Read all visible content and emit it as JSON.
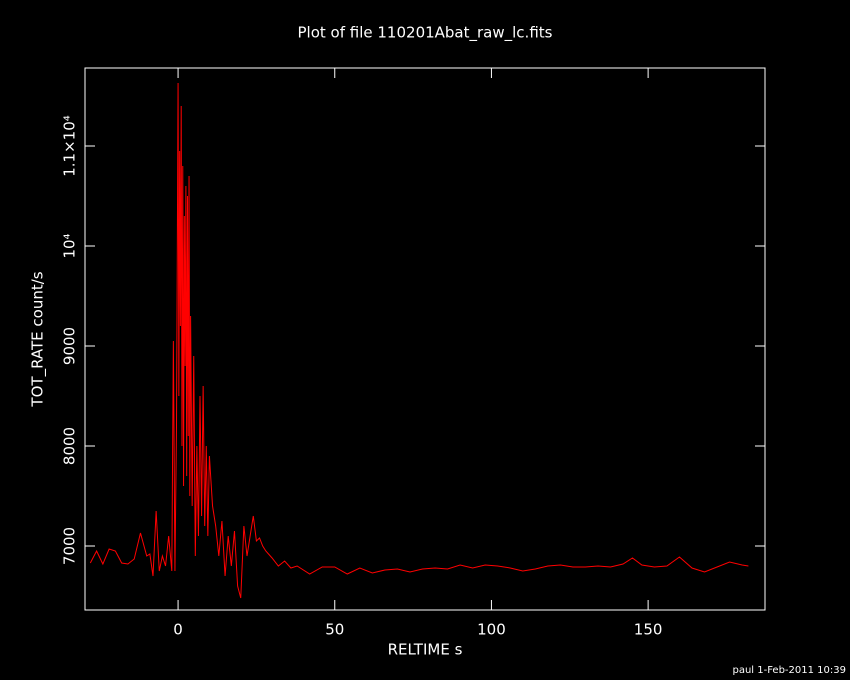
{
  "chart_data": {
    "type": "line",
    "title": "Plot of file 110201Abat_raw_lc.fits",
    "x_label": "RELTIME  s",
    "y_label": "TOT_RATE  count/s",
    "footer": "paul  1-Feb-2011 10:39",
    "color": "#ff0000",
    "xlim": [
      -29.7,
      187.3
    ],
    "ylim": [
      6360,
      11780
    ],
    "xticks": [
      0,
      50,
      100,
      150
    ],
    "yticks": [
      7000,
      8000,
      9000,
      {
        "value": 10000,
        "label": "10⁴"
      },
      {
        "value": 11000,
        "label": "1.1×10⁴"
      }
    ],
    "x": [
      -28,
      -26,
      -24,
      -22,
      -20,
      -18,
      -16,
      -14,
      -12,
      -10,
      -9,
      -8,
      -7,
      -6,
      -5,
      -4,
      -3,
      -2,
      -1.5,
      -1,
      -0.5,
      0,
      0.25,
      0.5,
      0.75,
      1,
      1.25,
      1.5,
      1.75,
      2,
      2.25,
      2.5,
      2.75,
      3,
      3.25,
      3.5,
      3.75,
      4,
      4.5,
      5,
      5.5,
      6,
      6.5,
      7,
      7.5,
      8,
      8.5,
      9,
      9.5,
      10,
      11,
      12,
      13,
      14,
      15,
      16,
      17,
      18,
      19,
      20,
      21,
      22,
      23,
      24,
      25,
      26,
      27,
      28,
      30,
      32,
      34,
      36,
      38,
      42,
      46,
      50,
      54,
      58,
      62,
      66,
      70,
      74,
      78,
      82,
      86,
      90,
      94,
      98,
      102,
      106,
      110,
      114,
      118,
      122,
      126,
      130,
      134,
      138,
      142,
      145,
      148,
      152,
      156,
      160,
      164,
      168,
      172,
      176,
      180,
      182
    ],
    "values": [
      6830,
      6950,
      6820,
      6970,
      6950,
      6830,
      6820,
      6870,
      7130,
      6900,
      6920,
      6700,
      7350,
      6750,
      6900,
      6800,
      7100,
      6750,
      9050,
      6750,
      8200,
      11630,
      8500,
      10950,
      9200,
      11400,
      8000,
      10800,
      7600,
      10300,
      8800,
      10600,
      7700,
      10500,
      8100,
      10700,
      7500,
      9300,
      7400,
      8900,
      6900,
      8000,
      7100,
      8500,
      7300,
      8600,
      7200,
      8000,
      7100,
      7900,
      7400,
      7200,
      6900,
      7250,
      6700,
      7100,
      6800,
      7150,
      6600,
      6480,
      7200,
      6900,
      7100,
      7300,
      7050,
      7080,
      7000,
      6950,
      6880,
      6800,
      6850,
      6780,
      6800,
      6720,
      6790,
      6790,
      6720,
      6780,
      6730,
      6760,
      6770,
      6740,
      6770,
      6780,
      6770,
      6810,
      6780,
      6810,
      6800,
      6780,
      6750,
      6770,
      6800,
      6810,
      6790,
      6790,
      6800,
      6790,
      6820,
      6880,
      6810,
      6790,
      6800,
      6890,
      6780,
      6740,
      6790,
      6840,
      6810,
      6800
    ]
  }
}
